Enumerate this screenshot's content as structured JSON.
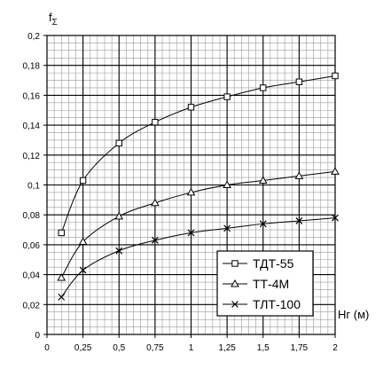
{
  "chart_data": {
    "type": "line",
    "title": "",
    "ylabel_main": "f",
    "ylabel_sub": "Σ",
    "xlabel": "Hг (м)",
    "xlim": [
      0,
      2
    ],
    "ylim": [
      0,
      0.2
    ],
    "x_ticks": [
      "0",
      "0,25",
      "0,5",
      "0,75",
      "1",
      "1,25",
      "1,5",
      "1,75",
      "2"
    ],
    "y_ticks": [
      "0",
      "0,02",
      "0,04",
      "0,06",
      "0,08",
      "0,1",
      "0,12",
      "0,14",
      "0,16",
      "0,18",
      "0,2"
    ],
    "grid": "major and minor",
    "legend_position": "bottom-right",
    "series": [
      {
        "name": "ТДТ-55",
        "marker": "square",
        "x": [
          0.1,
          0.25,
          0.5,
          0.75,
          1,
          1.25,
          1.5,
          1.75,
          2
        ],
        "y": [
          0.068,
          0.103,
          0.128,
          0.142,
          0.152,
          0.159,
          0.165,
          0.169,
          0.173
        ]
      },
      {
        "name": "ТТ-4М",
        "marker": "triangle",
        "x": [
          0.1,
          0.25,
          0.5,
          0.75,
          1,
          1.25,
          1.5,
          1.75,
          2
        ],
        "y": [
          0.038,
          0.062,
          0.079,
          0.088,
          0.095,
          0.1,
          0.103,
          0.106,
          0.109
        ]
      },
      {
        "name": "ТЛТ-100",
        "marker": "x",
        "x": [
          0.1,
          0.25,
          0.5,
          0.75,
          1,
          1.25,
          1.5,
          1.75,
          2
        ],
        "y": [
          0.025,
          0.043,
          0.056,
          0.063,
          0.068,
          0.071,
          0.074,
          0.076,
          0.078
        ]
      }
    ]
  }
}
